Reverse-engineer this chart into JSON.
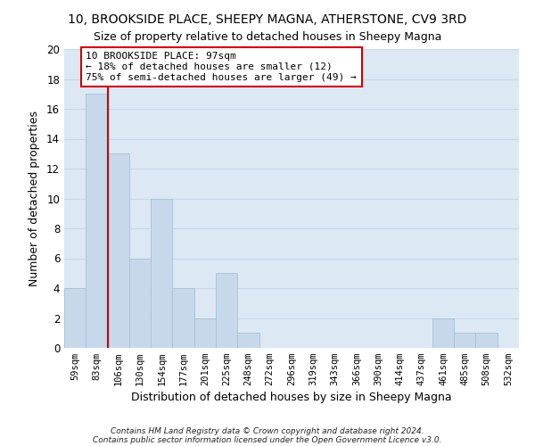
{
  "title": "10, BROOKSIDE PLACE, SHEEPY MAGNA, ATHERSTONE, CV9 3RD",
  "subtitle": "Size of property relative to detached houses in Sheepy Magna",
  "xlabel": "Distribution of detached houses by size in Sheepy Magna",
  "ylabel": "Number of detached properties",
  "footer_line1": "Contains HM Land Registry data © Crown copyright and database right 2024.",
  "footer_line2": "Contains public sector information licensed under the Open Government Licence v3.0.",
  "bin_labels": [
    "59sqm",
    "83sqm",
    "106sqm",
    "130sqm",
    "154sqm",
    "177sqm",
    "201sqm",
    "225sqm",
    "248sqm",
    "272sqm",
    "296sqm",
    "319sqm",
    "343sqm",
    "366sqm",
    "390sqm",
    "414sqm",
    "437sqm",
    "461sqm",
    "485sqm",
    "508sqm",
    "532sqm"
  ],
  "bar_values": [
    4,
    17,
    13,
    6,
    10,
    4,
    2,
    5,
    1,
    0,
    0,
    0,
    0,
    0,
    0,
    0,
    0,
    2,
    1,
    1,
    0
  ],
  "bar_color": "#c8d8eb",
  "bar_edge_color": "#a8c0d8",
  "vline_color": "#cc0000",
  "vline_pos": 1.5,
  "ylim": [
    0,
    20
  ],
  "yticks": [
    0,
    2,
    4,
    6,
    8,
    10,
    12,
    14,
    16,
    18,
    20
  ],
  "annotation_text": "10 BROOKSIDE PLACE: 97sqm\n← 18% of detached houses are smaller (12)\n75% of semi-detached houses are larger (49) →",
  "annotation_box_facecolor": "#ffffff",
  "annotation_box_edgecolor": "#cc0000",
  "grid_color": "#c8d8e8",
  "bg_color": "#dce8f4",
  "fig_bg_color": "#ffffff"
}
